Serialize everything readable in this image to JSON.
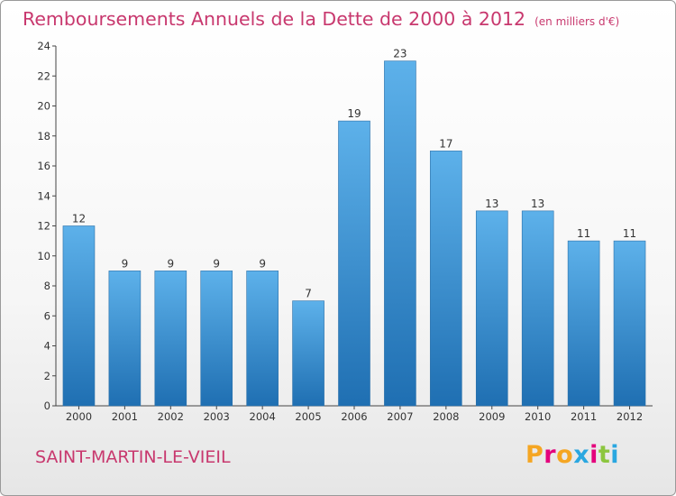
{
  "chart": {
    "title": "Remboursements Annuels de la Dette de 2000 à 2012",
    "unit": "(en milliers d'€)"
  },
  "footer": {
    "place": "SAINT-MARTIN-LE-VIEIL"
  },
  "brand": {
    "logo_text": "Proxiti",
    "letter_colors": [
      "#f5a623",
      "#e4007c",
      "#f5a623",
      "#2aa7e0",
      "#e4007c",
      "#8cc63f",
      "#2aa7e0"
    ]
  },
  "colors": {
    "bar_top": "#5db1ea",
    "bar_bottom": "#1f6fb2",
    "title": "#c8386e",
    "axis": "#444444"
  },
  "chart_data": {
    "type": "bar",
    "categories": [
      "2000",
      "2001",
      "2002",
      "2003",
      "2004",
      "2005",
      "2006",
      "2007",
      "2008",
      "2009",
      "2010",
      "2011",
      "2012"
    ],
    "values": [
      12,
      9,
      9,
      9,
      9,
      7,
      19,
      23,
      17,
      13,
      13,
      11,
      11
    ],
    "data_labels": [
      "12",
      "9",
      "9",
      "9",
      "9",
      "7",
      "19",
      "23",
      "17",
      "13",
      "13",
      "11",
      "11"
    ],
    "yticks": [
      0,
      2,
      4,
      6,
      8,
      10,
      12,
      14,
      16,
      18,
      20,
      22,
      24
    ],
    "ylim": [
      0,
      24
    ],
    "grid": false,
    "legend": "none",
    "xlabel": "",
    "ylabel": ""
  }
}
